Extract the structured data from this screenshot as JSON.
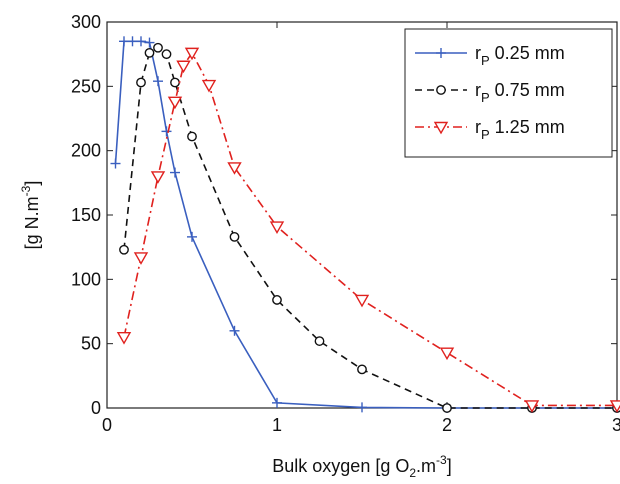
{
  "chart_data": {
    "type": "line",
    "xlabel": {
      "main": "Bulk oxygen [g O",
      "sub": "2",
      "tail": ".m",
      "sup": "-3",
      "end": "]"
    },
    "ylabel": {
      "main": "[g N.m",
      "sup": "-3",
      "end": "]"
    },
    "xlim": [
      0,
      3
    ],
    "ylim": [
      0,
      300
    ],
    "xticks": [
      0,
      1,
      2,
      3
    ],
    "yticks": [
      0,
      50,
      100,
      150,
      200,
      250,
      300
    ],
    "grid": false,
    "legend_position": "top-right",
    "series": [
      {
        "legend": {
          "prefix": "r",
          "sub": "P",
          "rest": " 0.25 mm"
        },
        "color": "#3A5FBF",
        "dash": "solid",
        "marker": "plus",
        "points": [
          [
            0.05,
            190
          ],
          [
            0.1,
            285
          ],
          [
            0.15,
            285
          ],
          [
            0.2,
            285
          ],
          [
            0.25,
            284
          ],
          [
            0.3,
            254
          ],
          [
            0.35,
            215
          ],
          [
            0.4,
            183
          ],
          [
            0.5,
            133
          ],
          [
            0.75,
            60
          ],
          [
            1.0,
            4
          ],
          [
            1.5,
            0.5
          ],
          [
            2.0,
            0
          ],
          [
            2.5,
            0
          ],
          [
            3.0,
            0
          ]
        ]
      },
      {
        "legend": {
          "prefix": "r",
          "sub": "P",
          "rest": " 0.75 mm"
        },
        "color": "#111111",
        "dash": "dashed",
        "marker": "circle",
        "points": [
          [
            0.1,
            123
          ],
          [
            0.2,
            253
          ],
          [
            0.25,
            276
          ],
          [
            0.3,
            280
          ],
          [
            0.35,
            275
          ],
          [
            0.4,
            253
          ],
          [
            0.5,
            211
          ],
          [
            0.75,
            133
          ],
          [
            1.0,
            84
          ],
          [
            1.25,
            52
          ],
          [
            1.5,
            30
          ],
          [
            2.0,
            0
          ],
          [
            2.5,
            0
          ],
          [
            3.0,
            0
          ]
        ]
      },
      {
        "legend": {
          "prefix": "r",
          "sub": "P",
          "rest": " 1.25 mm"
        },
        "color": "#E0211E",
        "dash": "dashdot",
        "marker": "triangle-down",
        "points": [
          [
            0.1,
            55
          ],
          [
            0.2,
            117
          ],
          [
            0.3,
            180
          ],
          [
            0.4,
            238
          ],
          [
            0.45,
            266
          ],
          [
            0.5,
            276
          ],
          [
            0.6,
            251
          ],
          [
            0.75,
            187
          ],
          [
            1.0,
            141
          ],
          [
            1.5,
            84
          ],
          [
            2.0,
            43
          ],
          [
            2.5,
            2
          ],
          [
            3.0,
            2
          ]
        ]
      }
    ]
  }
}
